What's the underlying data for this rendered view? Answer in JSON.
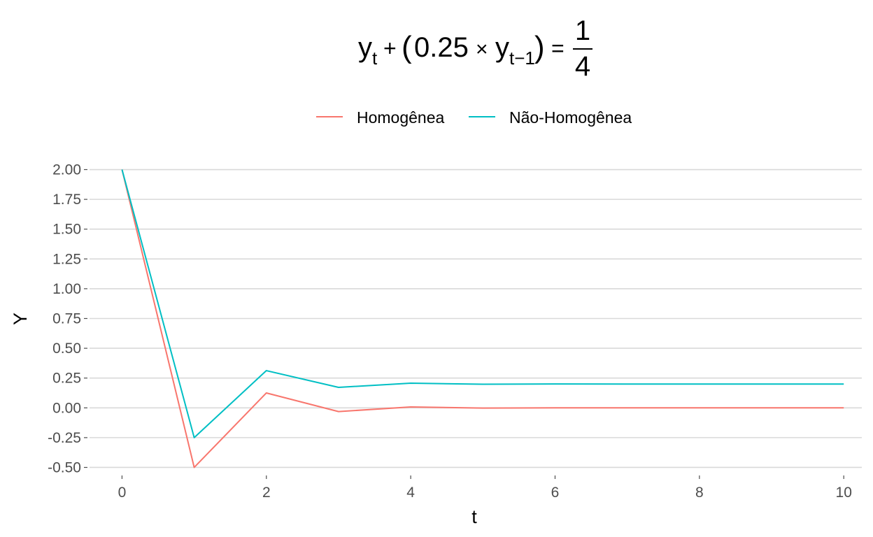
{
  "chart_data": {
    "type": "line",
    "title": {
      "y": "y",
      "sub_t": "t",
      "plus": "+",
      "lparen": "(",
      "coef": "0.25",
      "times": "×",
      "sub_tm1": "t−1",
      "rparen": ")",
      "equals": "=",
      "numerator": "1",
      "denominator": "4"
    },
    "xlabel": "t",
    "ylabel": "Y",
    "xlim": [
      -0.45,
      10.25
    ],
    "ylim": [
      -0.55,
      2.05
    ],
    "x_ticks": [
      0,
      2,
      4,
      6,
      8,
      10
    ],
    "x_tick_labels": [
      "0",
      "2",
      "4",
      "6",
      "8",
      "10"
    ],
    "y_ticks": [
      -0.5,
      -0.25,
      0,
      0.25,
      0.5,
      0.75,
      1,
      1.25,
      1.5,
      1.75,
      2
    ],
    "y_tick_labels": [
      "-0.50",
      "-0.25",
      "0.00",
      "0.25",
      "0.50",
      "0.75",
      "1.00",
      "1.25",
      "1.50",
      "1.75",
      "2.00"
    ],
    "grid": "horizontal",
    "legend_position": "top",
    "x": [
      0,
      1,
      2,
      3,
      4,
      5,
      6,
      7,
      8,
      9,
      10
    ],
    "series": [
      {
        "name": "Homogênea",
        "color": "#F8766D",
        "values": [
          2,
          -0.5,
          0.125,
          -0.03125,
          0.0078125,
          -0.001953,
          0.000488,
          -0.000122,
          3.05e-05,
          -7.6e-06,
          1.9e-06
        ]
      },
      {
        "name": "Não-Homogênea",
        "color": "#00BFC4",
        "values": [
          2,
          -0.25,
          0.3125,
          0.171875,
          0.207031,
          0.198242,
          0.200439,
          0.19989,
          0.200027,
          0.199993,
          0.200002
        ]
      }
    ]
  }
}
